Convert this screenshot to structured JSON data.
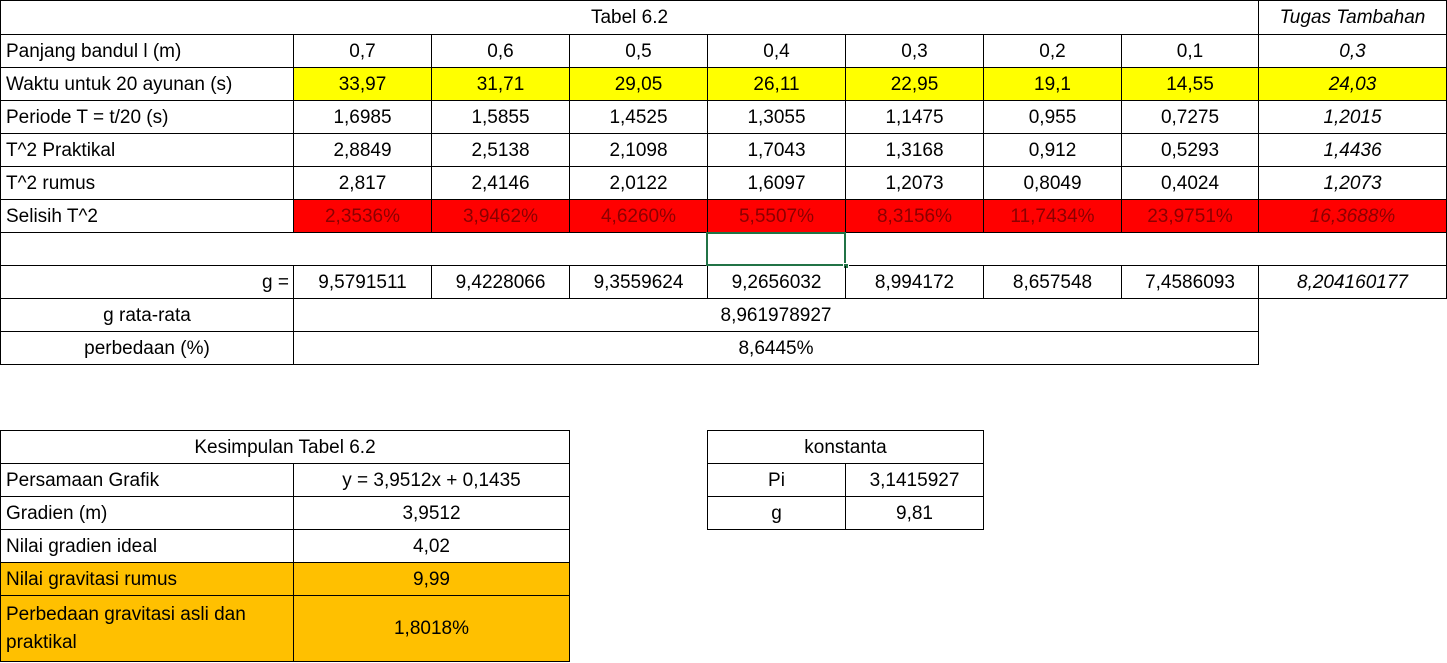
{
  "table62": {
    "title": "Tabel 6.2",
    "extra_header": "Tugas Tambahan",
    "rows": [
      {
        "label": "Panjang bandul l (m)",
        "values": [
          "0,7",
          "0,6",
          "0,5",
          "0,4",
          "0,3",
          "0,2",
          "0,1"
        ],
        "extra": "0,3"
      },
      {
        "label": "Waktu untuk 20 ayunan (s)",
        "values": [
          "33,97",
          "31,71",
          "29,05",
          "26,11",
          "22,95",
          "19,1",
          "14,55"
        ],
        "extra": "24,03"
      },
      {
        "label": "Periode T = t/20 (s)",
        "values": [
          "1,6985",
          "1,5855",
          "1,4525",
          "1,3055",
          "1,1475",
          "0,955",
          "0,7275"
        ],
        "extra": "1,2015"
      },
      {
        "label": "T^2 Praktikal",
        "values": [
          "2,8849",
          "2,5138",
          "2,1098",
          "1,7043",
          "1,3168",
          "0,912",
          "0,5293"
        ],
        "extra": "1,4436"
      },
      {
        "label": "T^2 rumus",
        "values": [
          "2,817",
          "2,4146",
          "2,0122",
          "1,6097",
          "1,2073",
          "0,8049",
          "0,4024"
        ],
        "extra": "1,2073"
      },
      {
        "label": "Selisih T^2",
        "values": [
          "2,3536%",
          "3,9462%",
          "4,6260%",
          "5,5507%",
          "8,3156%",
          "11,7434%",
          "23,9751%"
        ],
        "extra": "16,3688%"
      }
    ],
    "g_row": {
      "label": "g =",
      "values": [
        "9,5791511",
        "9,4228066",
        "9,3559624",
        "9,2656032",
        "8,994172",
        "8,657548",
        "7,4586093"
      ],
      "extra": "8,204160177"
    },
    "g_avg": {
      "label": "g rata-rata",
      "value": "8,961978927"
    },
    "diff": {
      "label": "perbedaan (%)",
      "value": "8,6445%"
    }
  },
  "kesimpulan": {
    "title": "Kesimpulan Tabel 6.2",
    "rows": [
      {
        "label": "Persamaan Grafik",
        "value": "y = 3,9512x + 0,1435"
      },
      {
        "label": "Gradien (m)",
        "value": "3,9512"
      },
      {
        "label": "Nilai gradien ideal",
        "value": "4,02"
      },
      {
        "label": "Nilai gravitasi rumus",
        "value": "9,99"
      },
      {
        "label": "Perbedaan gravitasi asli dan praktikal",
        "value": "1,8018%"
      }
    ]
  },
  "konstanta": {
    "title": "konstanta",
    "rows": [
      {
        "label": "Pi",
        "value": "3,1415927"
      },
      {
        "label": "g",
        "value": "9,81"
      }
    ]
  },
  "colors": {
    "yellow": "#ffff00",
    "red": "#ff0000",
    "orange": "#ffc000",
    "selection": "#217346"
  }
}
